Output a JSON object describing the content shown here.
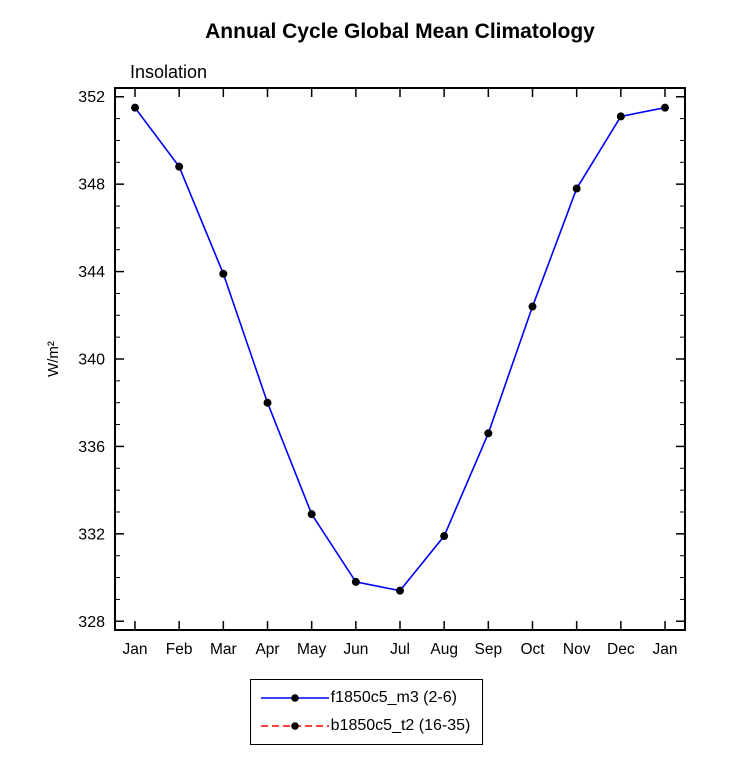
{
  "chart_data": {
    "type": "line",
    "title": "Annual Cycle Global Mean Climatology",
    "subtitle": "Insolation",
    "ylabel": "W/m²",
    "xlabel": "",
    "categories": [
      "Jan",
      "Feb",
      "Mar",
      "Apr",
      "May",
      "Jun",
      "Jul",
      "Aug",
      "Sep",
      "Oct",
      "Nov",
      "Dec",
      "Jan"
    ],
    "values": [
      351.5,
      348.8,
      343.9,
      338.0,
      332.9,
      329.8,
      329.4,
      331.9,
      336.6,
      342.4,
      347.8,
      351.1,
      351.5
    ],
    "series_color": "#0000ff",
    "marker_color": "#000000",
    "ylim": [
      328,
      352
    ],
    "ytick_step": 4,
    "yminor_step": 1,
    "grid": "off",
    "legend": {
      "position": "bottom-center",
      "entries": [
        {
          "label": "f1850c5_m3 (2-6)",
          "color": "#0000ff",
          "style": "solid",
          "marker": "black-dot"
        },
        {
          "label": "b1850c5_t2 (16-35)",
          "color": "#ff0000",
          "style": "dashed",
          "marker": "black-dot"
        }
      ]
    }
  }
}
